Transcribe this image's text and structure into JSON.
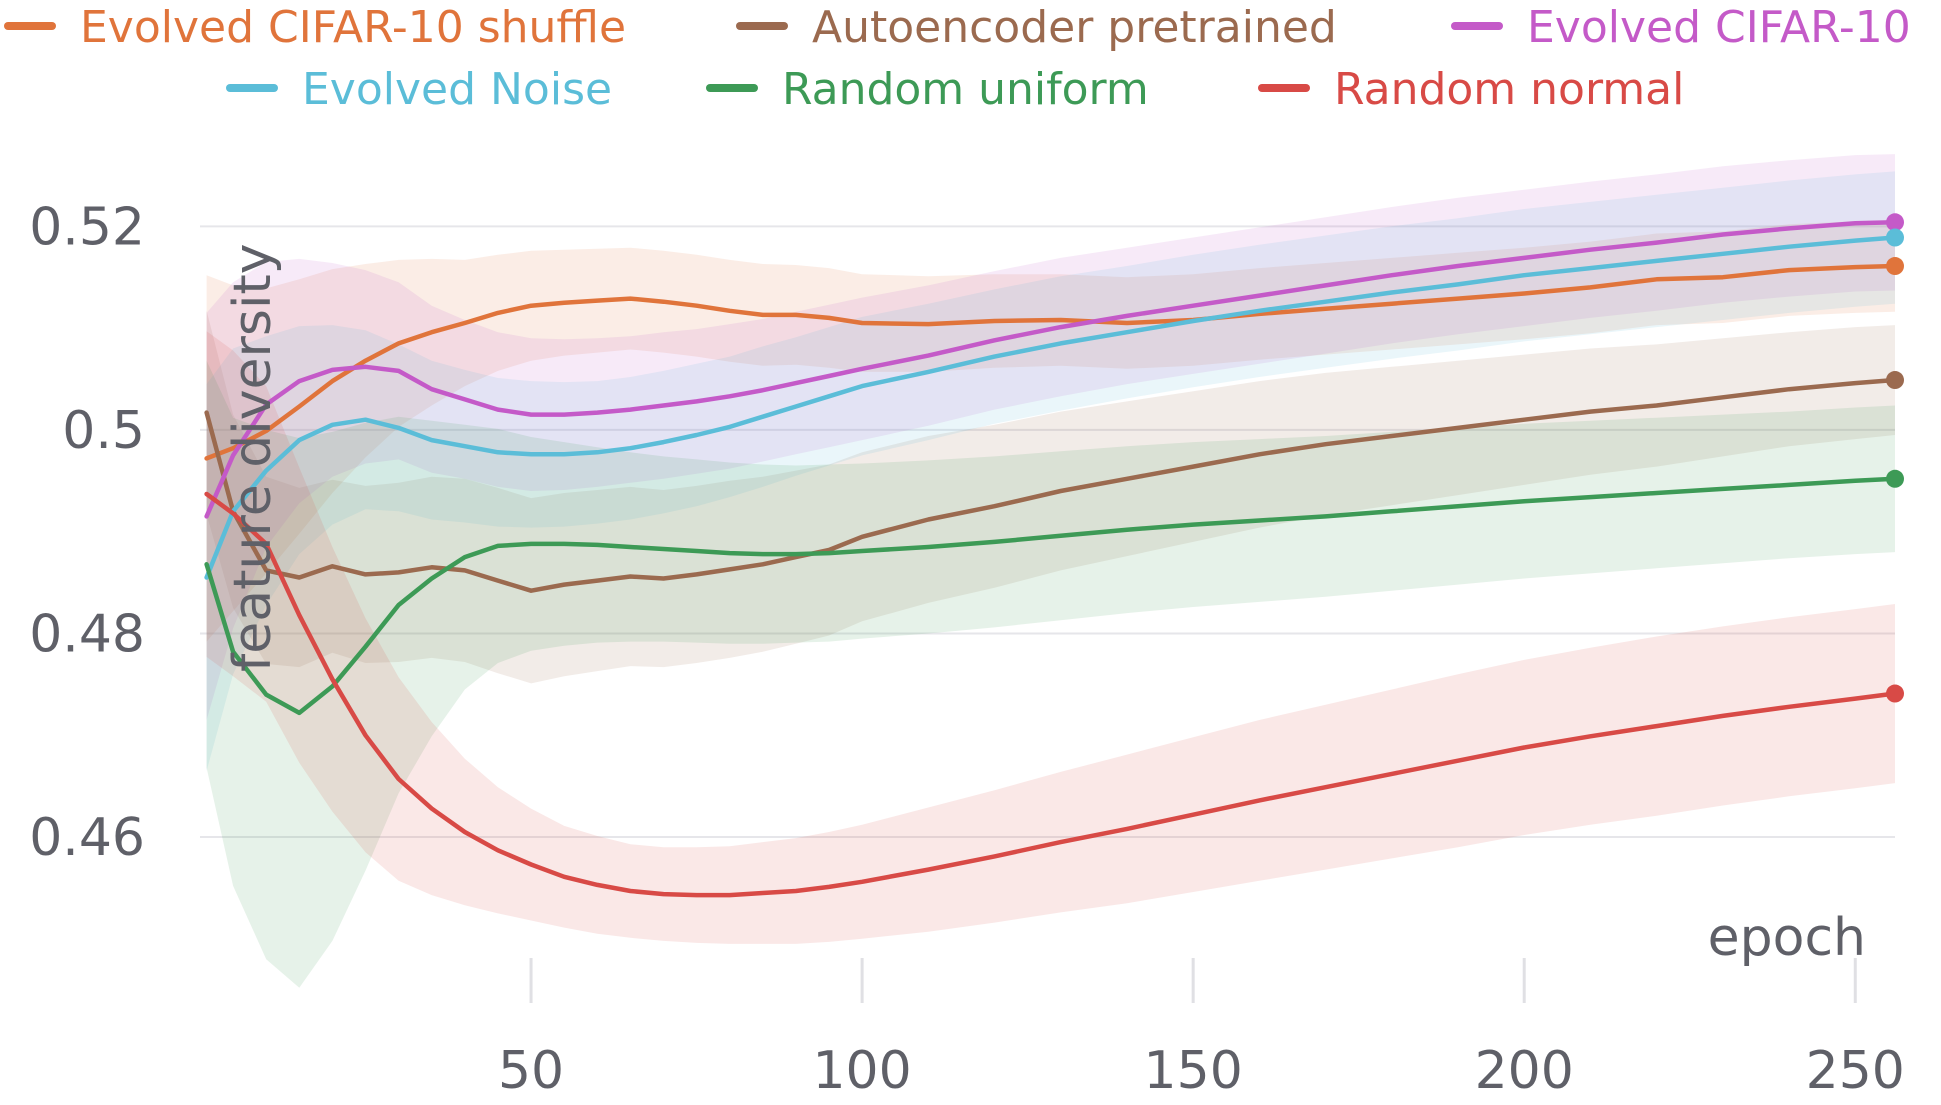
{
  "chart_data": {
    "type": "line",
    "title": "",
    "xlabel": "epoch",
    "ylabel": "feature diversity",
    "xlim": [
      0,
      256
    ],
    "ylim": [
      0.4435,
      0.5275
    ],
    "xticks": [
      50,
      100,
      150,
      200,
      250
    ],
    "xtick_labels": [
      "50",
      "100",
      "150",
      "200",
      "250"
    ],
    "yticks": [
      0.46,
      0.48,
      0.5,
      0.52
    ],
    "ytick_labels": [
      "0.46",
      "0.48",
      "0.5",
      "0.52"
    ],
    "grid": true,
    "legend_position": "top",
    "series": [
      {
        "name": "Evolved CIFAR-10 shuffle",
        "color": "#e0743b",
        "x": [
          1,
          5,
          10,
          15,
          20,
          25,
          30,
          35,
          40,
          45,
          50,
          55,
          60,
          65,
          70,
          75,
          80,
          85,
          90,
          95,
          100,
          110,
          120,
          130,
          140,
          150,
          160,
          170,
          180,
          190,
          200,
          210,
          220,
          230,
          240,
          250,
          256
        ],
        "y": [
          0.4972,
          0.4982,
          0.4999,
          0.5023,
          0.5048,
          0.5068,
          0.5085,
          0.5096,
          0.5105,
          0.5115,
          0.5122,
          0.5125,
          0.5127,
          0.5129,
          0.5126,
          0.5122,
          0.5117,
          0.5113,
          0.5113,
          0.511,
          0.5105,
          0.5104,
          0.5107,
          0.5108,
          0.5105,
          0.5108,
          0.5114,
          0.5119,
          0.5124,
          0.5129,
          0.5134,
          0.514,
          0.5148,
          0.515,
          0.5157,
          0.516,
          0.5161
        ],
        "std": [
          0.018,
          0.016,
          0.014,
          0.0125,
          0.011,
          0.0095,
          0.0082,
          0.0072,
          0.0062,
          0.0057,
          0.0054,
          0.0052,
          0.0051,
          0.005,
          0.005,
          0.005,
          0.005,
          0.005,
          0.0049,
          0.0049,
          0.0048,
          0.0047,
          0.0046,
          0.0045,
          0.0045,
          0.0045,
          0.0045,
          0.0045,
          0.0045,
          0.0045,
          0.0045,
          0.0045,
          0.0045,
          0.0045,
          0.0045,
          0.0045,
          0.0045
        ]
      },
      {
        "name": "Autoencoder pretrained",
        "color": "#9b6a4f",
        "x": [
          1,
          5,
          10,
          15,
          20,
          25,
          30,
          35,
          40,
          45,
          50,
          55,
          60,
          65,
          70,
          75,
          80,
          85,
          90,
          95,
          100,
          110,
          120,
          130,
          140,
          150,
          160,
          170,
          180,
          190,
          200,
          210,
          220,
          230,
          240,
          250,
          256
        ],
        "y": [
          0.5017,
          0.492,
          0.4862,
          0.4855,
          0.4866,
          0.4858,
          0.486,
          0.4865,
          0.4862,
          0.4852,
          0.4842,
          0.4848,
          0.4852,
          0.4856,
          0.4854,
          0.4858,
          0.4863,
          0.4868,
          0.4875,
          0.4882,
          0.4895,
          0.4912,
          0.4925,
          0.494,
          0.4952,
          0.4964,
          0.4976,
          0.4986,
          0.4994,
          0.5002,
          0.501,
          0.5018,
          0.5024,
          0.5032,
          0.504,
          0.5046,
          0.5049
        ],
        "std": [
          0.01,
          0.0095,
          0.0092,
          0.0088,
          0.0085,
          0.0087,
          0.0088,
          0.0089,
          0.009,
          0.0091,
          0.0091,
          0.009,
          0.0089,
          0.0088,
          0.0087,
          0.0087,
          0.0087,
          0.0086,
          0.0085,
          0.0084,
          0.0083,
          0.0082,
          0.008,
          0.0078,
          0.0076,
          0.0074,
          0.0072,
          0.007,
          0.0068,
          0.0066,
          0.0064,
          0.0062,
          0.006,
          0.0058,
          0.0056,
          0.0055,
          0.0054
        ]
      },
      {
        "name": "Evolved CIFAR-10",
        "color": "#c45ac8",
        "x": [
          1,
          5,
          10,
          15,
          20,
          25,
          30,
          35,
          40,
          45,
          50,
          55,
          60,
          65,
          70,
          75,
          80,
          85,
          90,
          95,
          100,
          110,
          120,
          130,
          140,
          150,
          160,
          170,
          180,
          190,
          200,
          210,
          220,
          230,
          240,
          250,
          256
        ],
        "y": [
          0.4915,
          0.4975,
          0.5025,
          0.5048,
          0.5059,
          0.5062,
          0.5058,
          0.504,
          0.503,
          0.502,
          0.5015,
          0.5015,
          0.5017,
          0.502,
          0.5024,
          0.5028,
          0.5033,
          0.5039,
          0.5046,
          0.5053,
          0.506,
          0.5073,
          0.5088,
          0.5101,
          0.5112,
          0.5122,
          0.5132,
          0.5142,
          0.5152,
          0.5161,
          0.5169,
          0.5177,
          0.5184,
          0.5192,
          0.5198,
          0.5203,
          0.5204
        ],
        "std": [
          0.02,
          0.017,
          0.014,
          0.012,
          0.0105,
          0.0095,
          0.0087,
          0.0082,
          0.0078,
          0.0076,
          0.0075,
          0.0074,
          0.0073,
          0.0072,
          0.0072,
          0.0071,
          0.0071,
          0.007,
          0.007,
          0.007,
          0.007,
          0.0069,
          0.0068,
          0.0068,
          0.0067,
          0.0067,
          0.0067,
          0.0067,
          0.0067,
          0.0067,
          0.0067,
          0.0067,
          0.0067,
          0.0067,
          0.0067,
          0.0067,
          0.0067
        ]
      },
      {
        "name": "Evolved Noise",
        "color": "#5bbdd8",
        "x": [
          1,
          5,
          10,
          15,
          20,
          25,
          30,
          35,
          40,
          45,
          50,
          55,
          60,
          65,
          70,
          75,
          80,
          85,
          90,
          95,
          100,
          110,
          120,
          130,
          140,
          150,
          160,
          170,
          180,
          190,
          200,
          210,
          220,
          230,
          240,
          250,
          256
        ],
        "y": [
          0.4855,
          0.492,
          0.496,
          0.499,
          0.5005,
          0.501,
          0.5002,
          0.499,
          0.4984,
          0.4978,
          0.4976,
          0.4976,
          0.4978,
          0.4982,
          0.4988,
          0.4995,
          0.5003,
          0.5013,
          0.5023,
          0.5033,
          0.5043,
          0.5057,
          0.5072,
          0.5085,
          0.5096,
          0.5107,
          0.5117,
          0.5126,
          0.5135,
          0.5143,
          0.5152,
          0.5159,
          0.5166,
          0.5173,
          0.518,
          0.5186,
          0.5189
        ],
        "std": [
          0.019,
          0.016,
          0.0132,
          0.0112,
          0.0098,
          0.0088,
          0.0082,
          0.0078,
          0.0075,
          0.0073,
          0.0072,
          0.0071,
          0.007,
          0.007,
          0.007,
          0.007,
          0.0069,
          0.0069,
          0.0068,
          0.0068,
          0.0068,
          0.0067,
          0.0066,
          0.0066,
          0.0065,
          0.0065,
          0.0065,
          0.0065,
          0.0065,
          0.0065,
          0.0065,
          0.0065,
          0.0065,
          0.0065,
          0.0065,
          0.0065,
          0.0065
        ]
      },
      {
        "name": "Random uniform",
        "color": "#3d9a56",
        "x": [
          1,
          5,
          10,
          15,
          20,
          25,
          30,
          35,
          40,
          45,
          50,
          55,
          60,
          65,
          70,
          75,
          80,
          85,
          90,
          95,
          100,
          110,
          120,
          130,
          140,
          150,
          160,
          170,
          180,
          190,
          200,
          210,
          220,
          230,
          240,
          250,
          256
        ],
        "y": [
          0.4868,
          0.4782,
          0.474,
          0.4722,
          0.4748,
          0.4787,
          0.4828,
          0.4854,
          0.4875,
          0.4886,
          0.4888,
          0.4888,
          0.4887,
          0.4885,
          0.4883,
          0.4881,
          0.4879,
          0.4878,
          0.4878,
          0.4879,
          0.4881,
          0.4885,
          0.489,
          0.4896,
          0.4902,
          0.4907,
          0.4911,
          0.4915,
          0.492,
          0.4925,
          0.493,
          0.4934,
          0.4938,
          0.4942,
          0.4946,
          0.495,
          0.4952
        ],
        "std": [
          0.02,
          0.023,
          0.026,
          0.027,
          0.025,
          0.022,
          0.0185,
          0.0155,
          0.013,
          0.0115,
          0.0105,
          0.01,
          0.0096,
          0.0093,
          0.0091,
          0.009,
          0.0089,
          0.0088,
          0.0087,
          0.0087,
          0.0086,
          0.0085,
          0.0084,
          0.0083,
          0.0082,
          0.0081,
          0.008,
          0.0079,
          0.0078,
          0.0077,
          0.0076,
          0.0075,
          0.0074,
          0.0073,
          0.0072,
          0.0072,
          0.0072
        ]
      },
      {
        "name": "Random normal",
        "color": "#d84a46",
        "x": [
          1,
          5,
          10,
          15,
          20,
          25,
          30,
          35,
          40,
          45,
          50,
          55,
          60,
          65,
          70,
          75,
          80,
          85,
          90,
          95,
          100,
          110,
          120,
          130,
          140,
          150,
          160,
          170,
          180,
          190,
          200,
          210,
          220,
          230,
          240,
          250,
          256
        ],
        "y": [
          0.4937,
          0.4918,
          0.4888,
          0.4818,
          0.4755,
          0.47,
          0.4657,
          0.4628,
          0.4605,
          0.4587,
          0.4573,
          0.4561,
          0.4553,
          0.4547,
          0.4544,
          0.4543,
          0.4543,
          0.4545,
          0.4547,
          0.4551,
          0.4556,
          0.4568,
          0.4581,
          0.4595,
          0.4608,
          0.4622,
          0.4636,
          0.4649,
          0.4662,
          0.4675,
          0.4688,
          0.4699,
          0.4709,
          0.4719,
          0.4728,
          0.4736,
          0.4741
        ],
        "std": [
          0.016,
          0.016,
          0.0155,
          0.0145,
          0.013,
          0.0115,
          0.01,
          0.0085,
          0.0072,
          0.0062,
          0.0055,
          0.005,
          0.0048,
          0.0046,
          0.0046,
          0.0047,
          0.0048,
          0.005,
          0.0052,
          0.0054,
          0.0056,
          0.0061,
          0.0065,
          0.0069,
          0.0073,
          0.0076,
          0.0079,
          0.0081,
          0.0083,
          0.0085,
          0.0086,
          0.0087,
          0.0088,
          0.0088,
          0.0088,
          0.0088,
          0.0088
        ]
      }
    ]
  }
}
